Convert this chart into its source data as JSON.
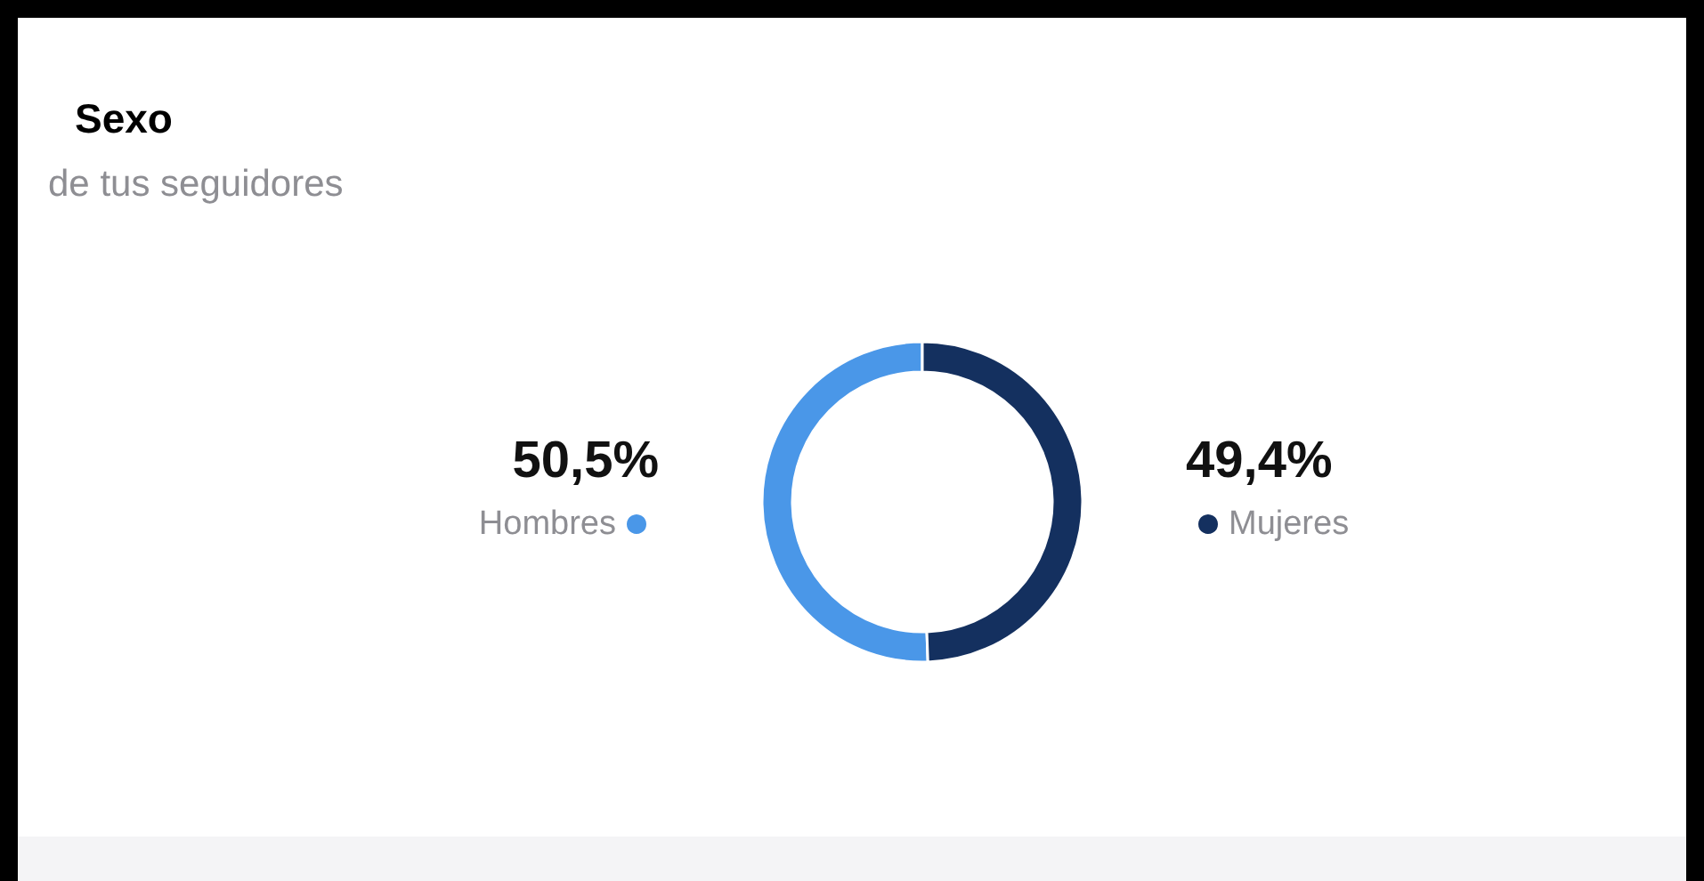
{
  "chart_data": {
    "type": "donut",
    "title": "Sexo",
    "subtitle": "de tus seguidores",
    "categories": [
      "Hombres",
      "Mujeres"
    ],
    "values": [
      50.5,
      49.4
    ],
    "value_labels": [
      "50,5%",
      "49,4%"
    ],
    "colors": [
      "#4a97e8",
      "#14305f"
    ],
    "legend": "center"
  }
}
